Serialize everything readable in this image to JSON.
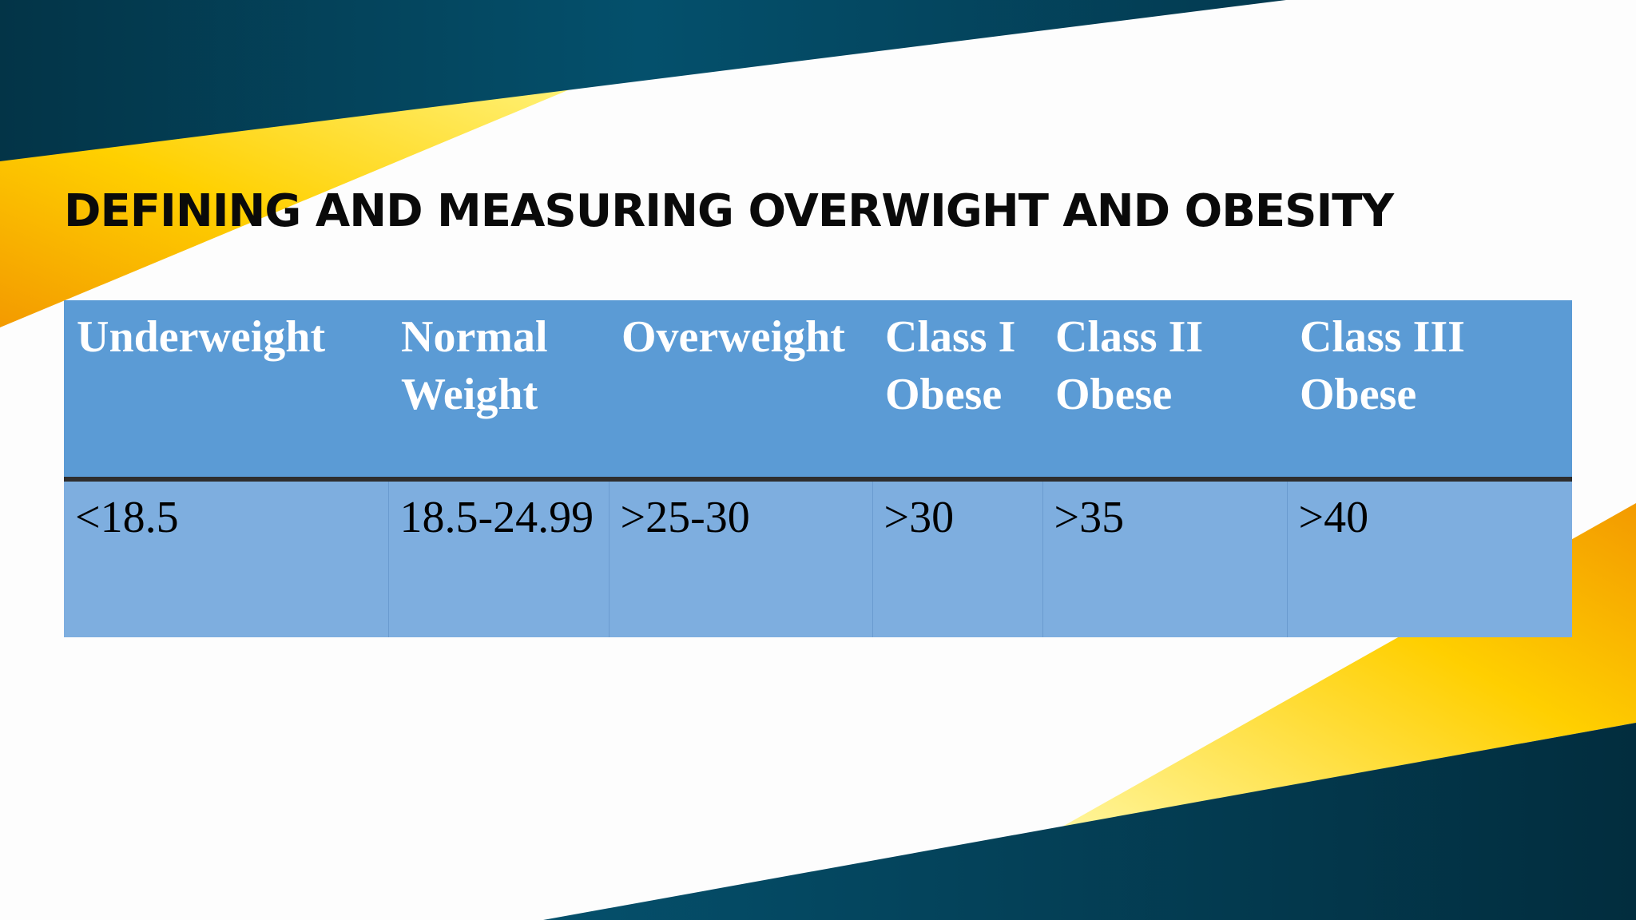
{
  "slide": {
    "title": "DEFINING AND MEASURING OVERWIGHT AND OBESITY"
  },
  "table": {
    "headers": [
      "Underweight",
      "Normal Weight",
      "Overweight",
      "Class I Obese",
      "Class II Obese",
      "Class III Obese"
    ],
    "values": [
      "<18.5",
      "18.5-24.99",
      ">25-30",
      ">30",
      ">35",
      ">40"
    ]
  },
  "colors": {
    "navy": "#033e55",
    "yellow": "#ffd400",
    "orange": "#f5a400",
    "header_blue": "#5b9bd5",
    "cell_blue": "#7eaedf"
  }
}
